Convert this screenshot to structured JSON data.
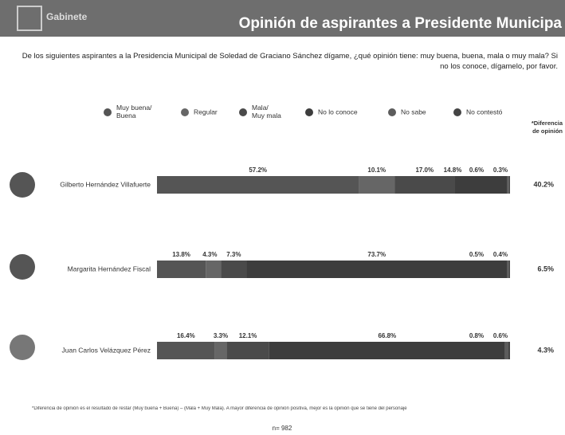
{
  "header": {
    "brand": "Gabinete",
    "title": "Opinión de aspirantes a Presidente Municipa"
  },
  "question": "De los siguientes aspirantes a la Presidencia Municipal de Soledad de Graciano Sánchez dígame, ¿qué opinión tiene: muy buena, buena, mala o muy mala? Si no los conoce, dígamelo, por favor.",
  "chart_data": {
    "type": "bar",
    "orientation": "horizontal",
    "stacked": true,
    "categories": [
      "Gilberto Hernández Villafuerte",
      "Margarita Hernández Fiscal",
      "Juan Carlos Velázquez Pérez"
    ],
    "xlim": [
      0,
      100
    ],
    "series": [
      {
        "name": "Muy buena/ Buena",
        "color": "#555555",
        "values": [
          57.2,
          13.8,
          16.4
        ],
        "value_labels": [
          "57.2%",
          "13.8%",
          "16.4%"
        ]
      },
      {
        "name": "Regular",
        "color": "#666666",
        "values": [
          10.1,
          4.3,
          3.3
        ],
        "value_labels": [
          "10.1%",
          "4.3%",
          "3.3%"
        ]
      },
      {
        "name": "Mala/ Muy mala",
        "color": "#4a4a4a",
        "values": [
          17.0,
          7.3,
          12.1
        ],
        "value_labels": [
          "17.0%",
          "7.3%",
          "12.1%"
        ]
      },
      {
        "name": "No lo conoce",
        "color": "#3d3d3d",
        "values": [
          14.8,
          73.7,
          66.8
        ],
        "value_labels": [
          "14.8%",
          "73.7%",
          "66.8%"
        ]
      },
      {
        "name": "No sabe",
        "color": "#5c5c5c",
        "values": [
          0.6,
          0.5,
          0.8
        ],
        "value_labels": [
          "0.6%",
          "0.5%",
          "0.8%"
        ]
      },
      {
        "name": "No contestó",
        "color": "#444444",
        "values": [
          0.3,
          0.4,
          0.6
        ],
        "value_labels": [
          "0.3%",
          "0.4%",
          "0.6%"
        ]
      }
    ],
    "difference": {
      "title": "*Diferencia de opinión",
      "values": [
        40.2,
        6.5,
        4.3
      ],
      "value_labels": [
        "40.2%",
        "6.5%",
        "4.3%"
      ]
    }
  },
  "footnote": "*Diferencia de opinión es el resultado de restar (Muy buena + Buena) – (Mala + Muy Mala). A mayor diferencia de opinión positiva, mejor es la opinión que se tiene del personaje",
  "sample": "n= 982"
}
